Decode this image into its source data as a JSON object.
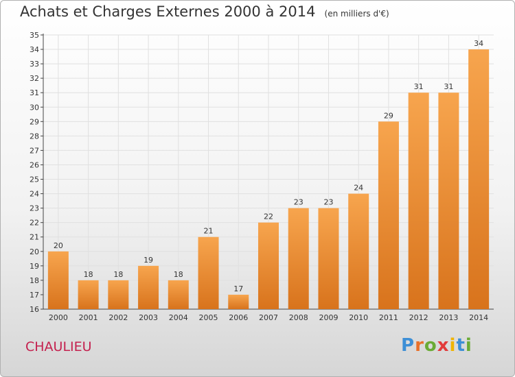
{
  "title": "Achats et Charges Externes 2000 à 2014",
  "unit_note": "(en milliers d'€)",
  "commune": "CHAULIEU",
  "logo": {
    "text": "Proxiti",
    "letter_colors": [
      "#3d8fd6",
      "#e8702a",
      "#6aab35",
      "#e23b3b",
      "#f0b400",
      "#3d8fd6",
      "#6aab35"
    ]
  },
  "colors": {
    "bar_light": "#f7a54e",
    "bar_dark": "#d8731c",
    "grid": "#e0e0e0",
    "axis": "#444444"
  },
  "chart_data": {
    "type": "bar",
    "categories": [
      "2000",
      "2001",
      "2002",
      "2003",
      "2004",
      "2005",
      "2006",
      "2007",
      "2008",
      "2009",
      "2010",
      "2011",
      "2012",
      "2013",
      "2014"
    ],
    "values": [
      20,
      18,
      18,
      19,
      18,
      21,
      17,
      22,
      23,
      23,
      24,
      29,
      31,
      31,
      34
    ],
    "ylim": [
      16,
      35
    ],
    "yticks": [
      16,
      17,
      18,
      19,
      20,
      21,
      22,
      23,
      24,
      25,
      26,
      27,
      28,
      29,
      30,
      31,
      32,
      33,
      34,
      35
    ],
    "grid": true,
    "data_labels": true
  }
}
